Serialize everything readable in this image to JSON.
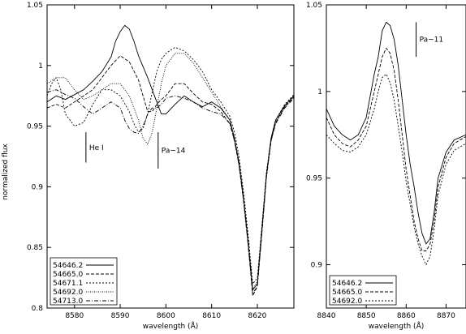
{
  "chart_data": [
    {
      "type": "line",
      "xlabel": "wavelength (Å)",
      "ylabel": "normalized flux",
      "xlim": [
        8574,
        8628
      ],
      "ylim": [
        0.8,
        1.05
      ],
      "xticks": [
        8580,
        8590,
        8600,
        8610,
        8620
      ],
      "yticks": [
        0.8,
        0.85,
        0.9,
        0.95,
        1.0,
        1.05
      ],
      "ytick_labels": [
        "0.8",
        "0.85",
        "0.9",
        "0.95",
        "1",
        "1.05"
      ],
      "grid": false,
      "legend_position": "bottom-left",
      "annotations": [
        {
          "text": "He I",
          "x": 8582.5,
          "y_range": [
            0.92,
            0.945
          ]
        },
        {
          "text": "Pa−14",
          "x": 8598.3,
          "y_range": [
            0.915,
            0.945
          ]
        }
      ],
      "series": [
        {
          "name": "54646.2",
          "style": "solid",
          "x": [
            8574,
            8576,
            8578,
            8580,
            8582,
            8584,
            8586,
            8588,
            8589,
            8590,
            8591,
            8592,
            8593,
            8594,
            8596,
            8598,
            8599,
            8600,
            8602,
            8604,
            8606,
            8608,
            8610,
            8612,
            8614,
            8615,
            8616,
            8617,
            8618,
            8619,
            8620,
            8621,
            8622,
            8623,
            8624,
            8626,
            8628
          ],
          "y": [
            0.97,
            0.975,
            0.972,
            0.976,
            0.98,
            0.987,
            0.995,
            1.007,
            1.02,
            1.028,
            1.033,
            1.03,
            1.02,
            1.008,
            0.99,
            0.97,
            0.96,
            0.96,
            0.968,
            0.975,
            0.97,
            0.966,
            0.97,
            0.965,
            0.955,
            0.94,
            0.92,
            0.89,
            0.855,
            0.815,
            0.82,
            0.865,
            0.91,
            0.94,
            0.955,
            0.967,
            0.975
          ]
        },
        {
          "name": "54665.0",
          "style": "dashed",
          "x": [
            8574,
            8576,
            8578,
            8580,
            8582,
            8584,
            8586,
            8588,
            8590,
            8592,
            8594,
            8595,
            8596,
            8597,
            8598,
            8599,
            8600,
            8602,
            8604,
            8606,
            8608,
            8610,
            8612,
            8614,
            8615,
            8616,
            8617,
            8618,
            8619,
            8620,
            8621,
            8622,
            8623,
            8624,
            8626,
            8628
          ],
          "y": [
            0.965,
            0.968,
            0.965,
            0.97,
            0.975,
            0.98,
            0.99,
            1.0,
            1.008,
            1.003,
            0.988,
            0.975,
            0.962,
            0.962,
            0.968,
            0.972,
            0.975,
            0.985,
            0.985,
            0.977,
            0.97,
            0.968,
            0.962,
            0.952,
            0.938,
            0.918,
            0.888,
            0.852,
            0.81,
            0.818,
            0.862,
            0.908,
            0.938,
            0.953,
            0.966,
            0.974
          ]
        },
        {
          "name": "54671.1",
          "style": "short-dashed",
          "x": [
            8574,
            8575,
            8576,
            8577,
            8578,
            8580,
            8582,
            8584,
            8586,
            8588,
            8590,
            8592,
            8593,
            8594,
            8595,
            8596,
            8597,
            8598,
            8599,
            8600,
            8602,
            8604,
            8606,
            8608,
            8610,
            8612,
            8614,
            8615,
            8616,
            8617,
            8618,
            8619,
            8620,
            8621,
            8622,
            8623,
            8624,
            8626,
            8628
          ],
          "y": [
            0.975,
            0.985,
            0.99,
            0.98,
            0.96,
            0.95,
            0.953,
            0.968,
            0.98,
            0.98,
            0.975,
            0.962,
            0.952,
            0.945,
            0.948,
            0.96,
            0.978,
            0.995,
            1.005,
            1.01,
            1.015,
            1.012,
            1.005,
            0.995,
            0.98,
            0.97,
            0.958,
            0.945,
            0.925,
            0.895,
            0.86,
            0.82,
            0.825,
            0.868,
            0.912,
            0.94,
            0.955,
            0.968,
            0.976
          ]
        },
        {
          "name": "54692.0",
          "style": "dotted",
          "x": [
            8574,
            8576,
            8578,
            8580,
            8582,
            8584,
            8586,
            8588,
            8590,
            8592,
            8594,
            8595,
            8596,
            8597,
            8598,
            8599,
            8600,
            8602,
            8604,
            8606,
            8608,
            8610,
            8612,
            8614,
            8615,
            8616,
            8617,
            8618,
            8619,
            8620,
            8621,
            8622,
            8623,
            8624,
            8626,
            8628
          ],
          "y": [
            0.985,
            0.99,
            0.99,
            0.98,
            0.972,
            0.975,
            0.98,
            0.985,
            0.985,
            0.975,
            0.955,
            0.94,
            0.935,
            0.945,
            0.965,
            0.985,
            1.0,
            1.01,
            1.01,
            1.002,
            0.99,
            0.978,
            0.966,
            0.955,
            0.94,
            0.92,
            0.89,
            0.855,
            0.815,
            0.822,
            0.865,
            0.91,
            0.938,
            0.953,
            0.966,
            0.974
          ]
        },
        {
          "name": "54713.0",
          "style": "dash-dot",
          "x": [
            8574,
            8576,
            8578,
            8580,
            8582,
            8584,
            8586,
            8588,
            8590,
            8591,
            8592,
            8593,
            8594,
            8595,
            8596,
            8597,
            8598,
            8599,
            8600,
            8602,
            8604,
            8606,
            8608,
            8610,
            8612,
            8614,
            8615,
            8616,
            8617,
            8618,
            8619,
            8620,
            8621,
            8622,
            8623,
            8624,
            8626,
            8628
          ],
          "y": [
            0.978,
            0.98,
            0.976,
            0.973,
            0.966,
            0.96,
            0.965,
            0.97,
            0.965,
            0.955,
            0.948,
            0.945,
            0.944,
            0.95,
            0.96,
            0.965,
            0.965,
            0.968,
            0.973,
            0.975,
            0.973,
            0.97,
            0.965,
            0.962,
            0.96,
            0.952,
            0.938,
            0.918,
            0.888,
            0.852,
            0.812,
            0.818,
            0.862,
            0.908,
            0.938,
            0.952,
            0.965,
            0.973
          ]
        }
      ]
    },
    {
      "type": "line",
      "xlabel": "wavelength (Å)",
      "xlim": [
        8840,
        8875
      ],
      "ylim": [
        0.875,
        1.05
      ],
      "xticks": [
        8840,
        8850,
        8860,
        8870
      ],
      "yticks": [
        0.9,
        0.95,
        1.0,
        1.05
      ],
      "ytick_labels": [
        "0.9",
        "0.95",
        "1",
        "1.05"
      ],
      "grid": false,
      "legend_position": "bottom-left",
      "annotations": [
        {
          "text": "Pa−11",
          "x": 8862.5,
          "y_range": [
            1.02,
            1.04
          ]
        }
      ],
      "series": [
        {
          "name": "54646.2",
          "style": "solid",
          "x": [
            8840,
            8842,
            8844,
            8846,
            8848,
            8850,
            8852,
            8853,
            8854,
            8855,
            8856,
            8857,
            8858,
            8859,
            8860,
            8861,
            8862,
            8863,
            8864,
            8865,
            8866,
            8867,
            8868,
            8870,
            8872,
            8875
          ],
          "y": [
            0.99,
            0.98,
            0.975,
            0.972,
            0.975,
            0.985,
            1.01,
            1.02,
            1.035,
            1.04,
            1.038,
            1.03,
            1.015,
            0.995,
            0.975,
            0.958,
            0.945,
            0.93,
            0.918,
            0.912,
            0.915,
            0.93,
            0.95,
            0.965,
            0.972,
            0.975
          ]
        },
        {
          "name": "54665.0",
          "style": "dashed",
          "x": [
            8840,
            8842,
            8844,
            8846,
            8848,
            8850,
            8852,
            8853,
            8854,
            8855,
            8856,
            8857,
            8858,
            8859,
            8860,
            8861,
            8862,
            8863,
            8864,
            8865,
            8866,
            8867,
            8868,
            8870,
            8872,
            8875
          ],
          "y": [
            0.985,
            0.975,
            0.97,
            0.968,
            0.972,
            0.98,
            1.0,
            1.01,
            1.02,
            1.025,
            1.022,
            1.012,
            0.995,
            0.975,
            0.955,
            0.94,
            0.925,
            0.915,
            0.908,
            0.908,
            0.912,
            0.925,
            0.945,
            0.962,
            0.97,
            0.974
          ]
        },
        {
          "name": "54692.0",
          "style": "short-dashed",
          "x": [
            8840,
            8842,
            8844,
            8846,
            8848,
            8850,
            8852,
            8853,
            8854,
            8855,
            8856,
            8857,
            8858,
            8859,
            8860,
            8861,
            8862,
            8863,
            8864,
            8865,
            8866,
            8867,
            8868,
            8870,
            8872,
            8875
          ],
          "y": [
            0.975,
            0.97,
            0.966,
            0.965,
            0.968,
            0.975,
            0.99,
            1.0,
            1.008,
            1.01,
            1.005,
            0.995,
            0.98,
            0.965,
            0.948,
            0.935,
            0.922,
            0.912,
            0.905,
            0.9,
            0.905,
            0.92,
            0.94,
            0.958,
            0.966,
            0.97
          ]
        }
      ]
    }
  ]
}
